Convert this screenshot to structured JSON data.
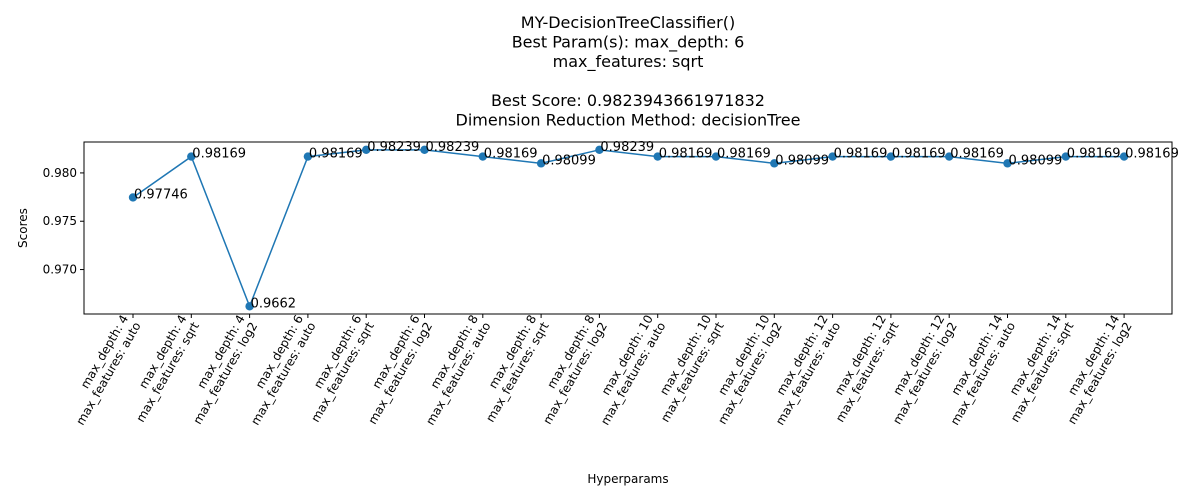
{
  "chart_data": {
    "type": "line",
    "title_lines": [
      "MY-DecisionTreeClassifier()",
      "Best Param(s): max_depth: 6",
      "max_features: sqrt",
      "",
      "Best Score: 0.9823943661971832",
      "Dimension Reduction Method: decisionTree"
    ],
    "xlabel": "Hyperparams",
    "ylabel": "Scores",
    "categories": [
      [
        "max_depth: 4",
        "max_features: auto"
      ],
      [
        "max_depth: 4",
        "max_features: sqrt"
      ],
      [
        "max_depth: 4",
        "max_features: log2"
      ],
      [
        "max_depth: 6",
        "max_features: auto"
      ],
      [
        "max_depth: 6",
        "max_features: sqrt"
      ],
      [
        "max_depth: 6",
        "max_features: log2"
      ],
      [
        "max_depth: 8",
        "max_features: auto"
      ],
      [
        "max_depth: 8",
        "max_features: sqrt"
      ],
      [
        "max_depth: 8",
        "max_features: log2"
      ],
      [
        "max_depth: 10",
        "max_features: auto"
      ],
      [
        "max_depth: 10",
        "max_features: sqrt"
      ],
      [
        "max_depth: 10",
        "max_features: log2"
      ],
      [
        "max_depth: 12",
        "max_features: auto"
      ],
      [
        "max_depth: 12",
        "max_features: sqrt"
      ],
      [
        "max_depth: 12",
        "max_features: log2"
      ],
      [
        "max_depth: 14",
        "max_features: auto"
      ],
      [
        "max_depth: 14",
        "max_features: sqrt"
      ],
      [
        "max_depth: 14",
        "max_features: log2"
      ]
    ],
    "values": [
      0.97746,
      0.98169,
      0.9662,
      0.98169,
      0.98239,
      0.98239,
      0.98169,
      0.98099,
      0.98239,
      0.98169,
      0.98169,
      0.98099,
      0.98169,
      0.98169,
      0.98169,
      0.98099,
      0.98169,
      0.98169
    ],
    "data_labels": [
      "0.97746",
      "0.98169",
      "0.9662",
      "0.98169",
      "0.98239",
      "0.98239",
      "0.98169",
      "0.98099",
      "0.98239",
      "0.98169",
      "0.98169",
      "0.98099",
      "0.98169",
      "0.98169",
      "0.98169",
      "0.98099",
      "0.98169",
      "0.98169"
    ],
    "yticks": [
      0.97,
      0.975,
      0.98
    ],
    "ytick_labels": [
      "0.970",
      "0.975",
      "0.980"
    ],
    "ylim": [
      0.9654,
      0.9832
    ],
    "x_tick_rotation_deg": 60,
    "grid": false,
    "series_color": "#1f77b4"
  }
}
